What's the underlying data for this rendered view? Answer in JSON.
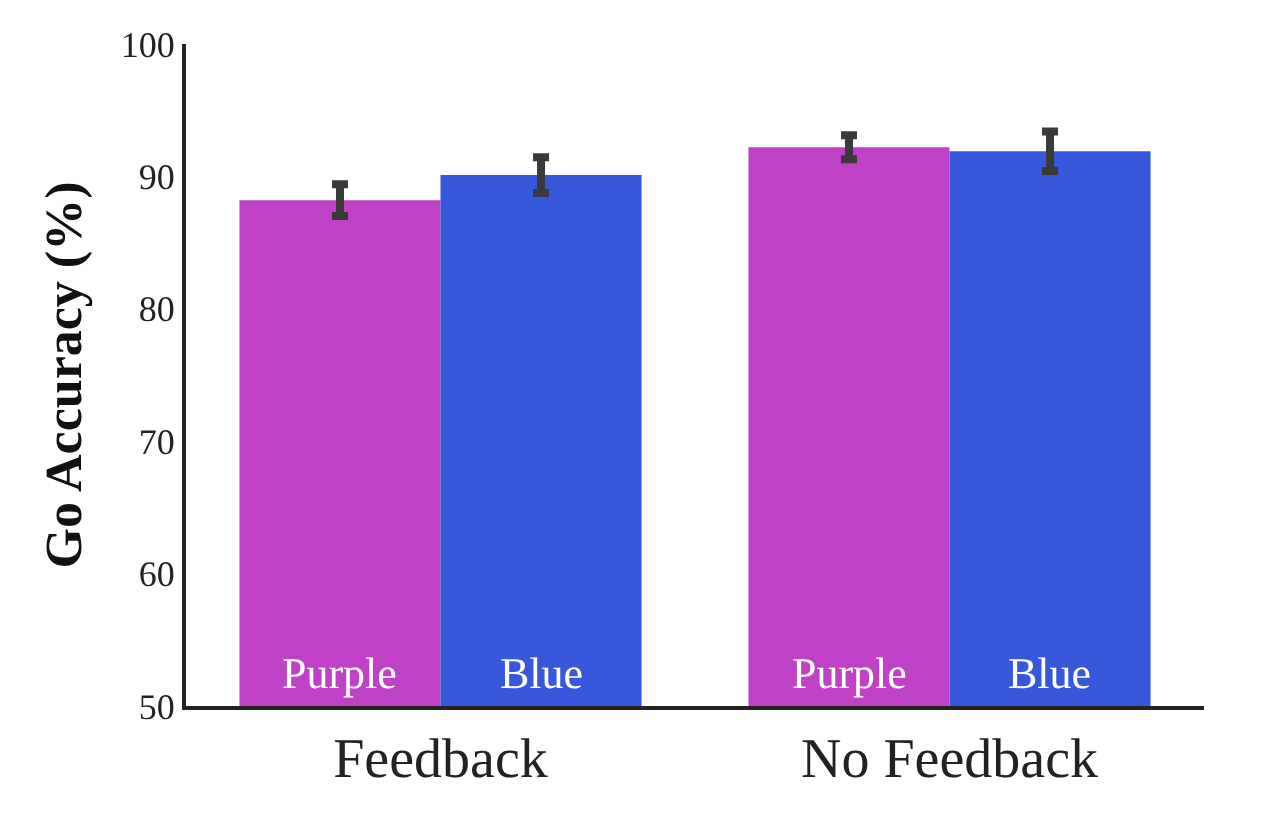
{
  "chart_data": {
    "type": "bar",
    "ylabel": "Go Accuracy (%)",
    "categories": [
      "Feedback",
      "No Feedback"
    ],
    "series": [
      {
        "name": "Purple",
        "color": "#bf42c6",
        "values": [
          88.2,
          92.2
        ],
        "errors": [
          1.2,
          0.9
        ]
      },
      {
        "name": "Blue",
        "color": "#3758db",
        "values": [
          90.1,
          91.9
        ],
        "errors": [
          1.35,
          1.5
        ]
      }
    ],
    "ylim": [
      50,
      100
    ],
    "yticks": [
      50,
      60,
      70,
      80,
      90,
      100
    ],
    "legend": false
  }
}
